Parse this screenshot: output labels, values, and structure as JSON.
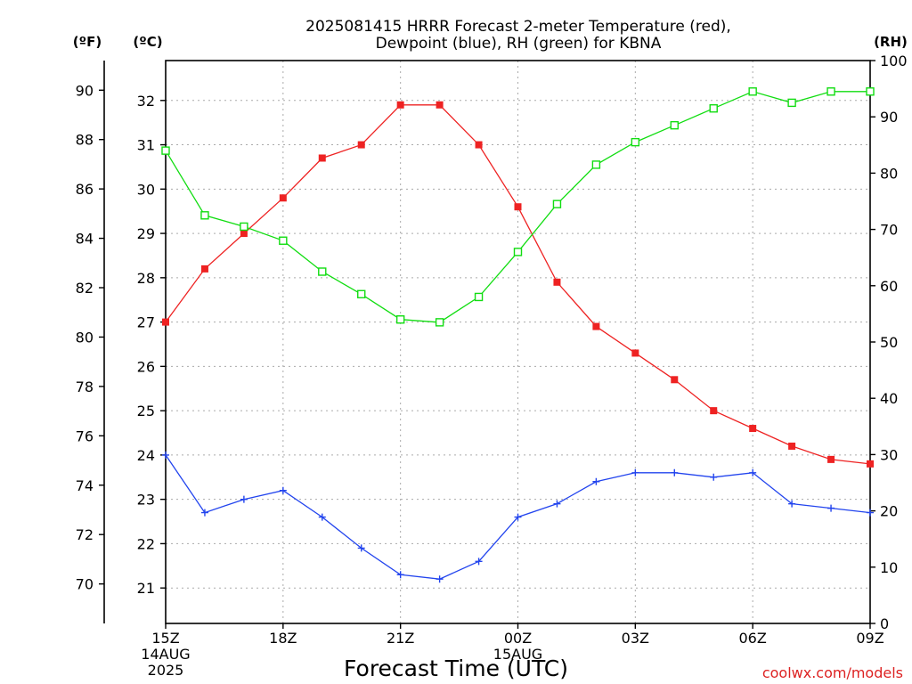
{
  "title": {
    "line1": "2025081415 HRRR Forecast 2-meter Temperature (red),",
    "line2": "Dewpoint (blue), RH (green) for KBNA"
  },
  "axis_units": {
    "fahrenheit": "(ºF)",
    "celsius": "(ºC)",
    "rh": "(RH)"
  },
  "xlabel": "Forecast Time (UTC)",
  "watermark": "coolwx.com/models",
  "colors": {
    "temperature": "#ee2222",
    "dewpoint": "#2244ee",
    "rh": "#11dd11",
    "grid": "#aaaaaa",
    "axis": "#000000",
    "watermark": "#dd2222"
  },
  "chart_data": {
    "type": "line",
    "x": [
      "15Z",
      "16Z",
      "17Z",
      "18Z",
      "19Z",
      "20Z",
      "21Z",
      "22Z",
      "23Z",
      "00Z",
      "01Z",
      "02Z",
      "03Z",
      "04Z",
      "05Z",
      "06Z",
      "07Z",
      "08Z",
      "09Z"
    ],
    "xlim": [
      0,
      18
    ],
    "x_ticks": [
      {
        "index": 0,
        "lines": [
          "15Z",
          "14AUG",
          "2025"
        ]
      },
      {
        "index": 3,
        "lines": [
          "18Z"
        ]
      },
      {
        "index": 6,
        "lines": [
          "21Z"
        ]
      },
      {
        "index": 9,
        "lines": [
          "00Z",
          "15AUG"
        ]
      },
      {
        "index": 12,
        "lines": [
          "03Z"
        ]
      },
      {
        "index": 15,
        "lines": [
          "06Z"
        ]
      },
      {
        "index": 18,
        "lines": [
          "09Z"
        ]
      }
    ],
    "celsius_axis": {
      "ylim": [
        20.2,
        32.9
      ],
      "ticks": [
        21,
        22,
        23,
        24,
        25,
        26,
        27,
        28,
        29,
        30,
        31,
        32
      ]
    },
    "fahrenheit_axis": {
      "ylim": [
        68.4,
        91.2
      ],
      "ticks": [
        70,
        72,
        74,
        76,
        78,
        80,
        82,
        84,
        86,
        88,
        90
      ]
    },
    "rh_axis": {
      "ylim": [
        0,
        100
      ],
      "ticks": [
        0,
        10,
        20,
        30,
        40,
        50,
        60,
        70,
        80,
        90,
        100
      ]
    },
    "grid": true,
    "series": [
      {
        "name": "Temperature",
        "axis": "celsius",
        "marker": "filled-square",
        "values": [
          27.0,
          28.2,
          29.0,
          29.8,
          30.7,
          31.0,
          31.9,
          31.9,
          31.0,
          29.6,
          27.9,
          26.9,
          26.3,
          25.7,
          25.0,
          24.6,
          24.2,
          23.9,
          23.8
        ]
      },
      {
        "name": "Dewpoint",
        "axis": "celsius",
        "marker": "plus",
        "values": [
          24.0,
          22.7,
          23.0,
          23.2,
          22.6,
          21.9,
          21.3,
          21.2,
          21.6,
          22.6,
          22.9,
          23.4,
          23.6,
          23.6,
          23.5,
          23.6,
          22.9,
          22.8,
          22.7
        ]
      },
      {
        "name": "RH",
        "axis": "rh",
        "marker": "open-square",
        "values": [
          84,
          72.5,
          70.5,
          68,
          62.5,
          58.5,
          54,
          53.5,
          58,
          66,
          74.5,
          81.5,
          85.5,
          88.5,
          91.5,
          94.5,
          92.5,
          94.5,
          94.5
        ]
      }
    ]
  }
}
